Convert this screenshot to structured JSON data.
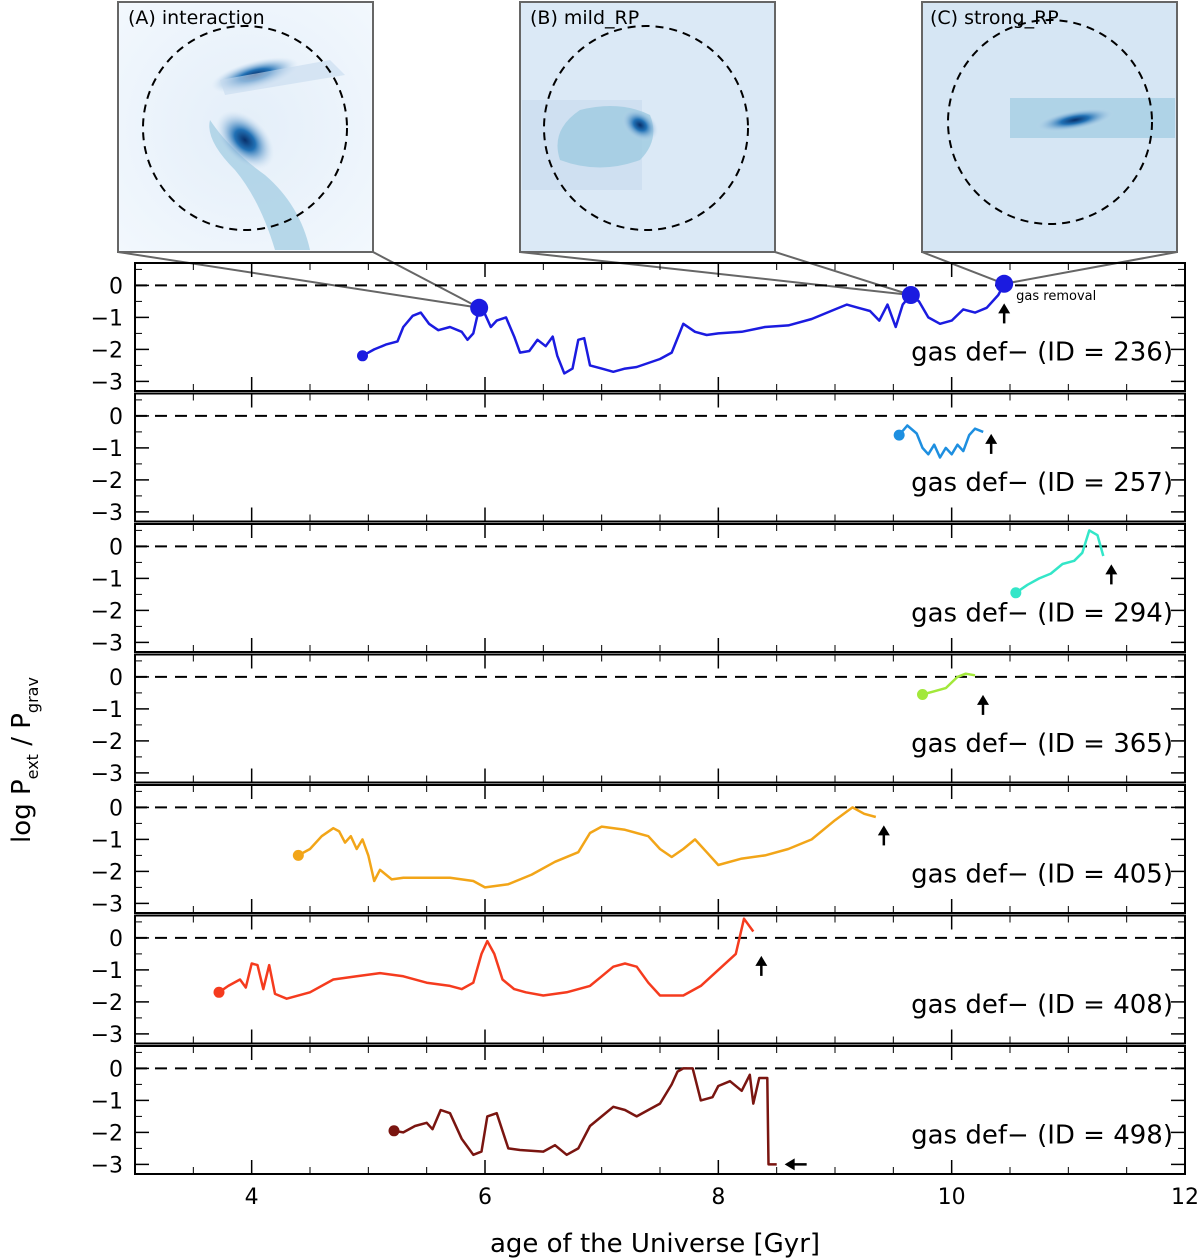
{
  "chart_data": {
    "type": "line",
    "xlabel": "age of the Universe [Gyr]",
    "ylabel": "log P_ext / P_grav",
    "xlim": [
      3,
      12
    ],
    "ylim": [
      -3.3,
      0.7
    ],
    "xticks": [
      4,
      6,
      8,
      10,
      12
    ],
    "yticks": [
      0,
      -1,
      -2,
      -3
    ],
    "reference_line_y": 0,
    "panel_label_prefix": "gas def− (ID = ",
    "panel_label_suffix": ")",
    "insets": [
      {
        "label": "(A) interaction",
        "points_to_series": "236",
        "time": 5.95
      },
      {
        "label": "(B) mild_RP",
        "points_to_series": "236",
        "time": 9.65
      },
      {
        "label": "(C) strong_RP",
        "points_to_series": "236",
        "time": 10.45
      }
    ],
    "annotation": {
      "text": "gas removal",
      "series": "236",
      "x": 10.45
    },
    "series": [
      {
        "id": "236",
        "color": "#1b1be0",
        "start": [
          4.95,
          -2.2
        ],
        "points": [
          [
            4.95,
            -2.2
          ],
          [
            5.05,
            -2.0
          ],
          [
            5.15,
            -1.85
          ],
          [
            5.25,
            -1.75
          ],
          [
            5.3,
            -1.3
          ],
          [
            5.38,
            -0.95
          ],
          [
            5.45,
            -0.85
          ],
          [
            5.52,
            -1.2
          ],
          [
            5.6,
            -1.4
          ],
          [
            5.7,
            -1.3
          ],
          [
            5.8,
            -1.45
          ],
          [
            5.85,
            -1.7
          ],
          [
            5.9,
            -1.5
          ],
          [
            5.95,
            -0.7
          ],
          [
            6.0,
            -0.9
          ],
          [
            6.05,
            -1.3
          ],
          [
            6.1,
            -1.1
          ],
          [
            6.18,
            -1.0
          ],
          [
            6.25,
            -1.6
          ],
          [
            6.3,
            -2.1
          ],
          [
            6.38,
            -2.05
          ],
          [
            6.45,
            -1.7
          ],
          [
            6.52,
            -1.9
          ],
          [
            6.58,
            -1.6
          ],
          [
            6.62,
            -2.2
          ],
          [
            6.68,
            -2.75
          ],
          [
            6.75,
            -2.6
          ],
          [
            6.8,
            -1.7
          ],
          [
            6.85,
            -1.65
          ],
          [
            6.9,
            -2.5
          ],
          [
            7.0,
            -2.6
          ],
          [
            7.1,
            -2.7
          ],
          [
            7.2,
            -2.6
          ],
          [
            7.3,
            -2.55
          ],
          [
            7.5,
            -2.3
          ],
          [
            7.6,
            -2.1
          ],
          [
            7.7,
            -1.2
          ],
          [
            7.8,
            -1.45
          ],
          [
            7.9,
            -1.55
          ],
          [
            8.0,
            -1.5
          ],
          [
            8.2,
            -1.45
          ],
          [
            8.4,
            -1.3
          ],
          [
            8.6,
            -1.25
          ],
          [
            8.8,
            -1.05
          ],
          [
            9.0,
            -0.75
          ],
          [
            9.1,
            -0.6
          ],
          [
            9.2,
            -0.7
          ],
          [
            9.3,
            -0.8
          ],
          [
            9.38,
            -1.1
          ],
          [
            9.45,
            -0.6
          ],
          [
            9.52,
            -1.3
          ],
          [
            9.58,
            -0.6
          ],
          [
            9.65,
            -0.3
          ],
          [
            9.72,
            -0.5
          ],
          [
            9.8,
            -1.0
          ],
          [
            9.9,
            -1.2
          ],
          [
            10.0,
            -1.1
          ],
          [
            10.1,
            -0.75
          ],
          [
            10.2,
            -0.85
          ],
          [
            10.3,
            -0.7
          ],
          [
            10.4,
            -0.3
          ],
          [
            10.45,
            0.05
          ]
        ]
      },
      {
        "id": "257",
        "color": "#1e8fe0",
        "start": [
          9.55,
          -0.6
        ],
        "points": [
          [
            9.55,
            -0.6
          ],
          [
            9.62,
            -0.3
          ],
          [
            9.7,
            -0.55
          ],
          [
            9.75,
            -1.0
          ],
          [
            9.8,
            -1.2
          ],
          [
            9.85,
            -0.9
          ],
          [
            9.9,
            -1.3
          ],
          [
            9.95,
            -1.0
          ],
          [
            10.0,
            -1.2
          ],
          [
            10.05,
            -0.9
          ],
          [
            10.1,
            -1.1
          ],
          [
            10.15,
            -0.6
          ],
          [
            10.2,
            -0.4
          ],
          [
            10.27,
            -0.5
          ]
        ]
      },
      {
        "id": "294",
        "color": "#33e6c8",
        "start": [
          10.55,
          -1.45
        ],
        "points": [
          [
            10.55,
            -1.45
          ],
          [
            10.65,
            -1.2
          ],
          [
            10.75,
            -1.0
          ],
          [
            10.85,
            -0.85
          ],
          [
            10.95,
            -0.55
          ],
          [
            11.05,
            -0.45
          ],
          [
            11.12,
            -0.2
          ],
          [
            11.18,
            0.5
          ],
          [
            11.25,
            0.35
          ],
          [
            11.3,
            -0.3
          ]
        ]
      },
      {
        "id": "365",
        "color": "#a2e83a",
        "start": [
          9.75,
          -0.55
        ],
        "points": [
          [
            9.75,
            -0.55
          ],
          [
            9.85,
            -0.45
          ],
          [
            9.95,
            -0.35
          ],
          [
            10.05,
            0.0
          ],
          [
            10.12,
            0.1
          ],
          [
            10.2,
            0.05
          ]
        ]
      },
      {
        "id": "405",
        "color": "#f2a518",
        "start": [
          4.4,
          -1.5
        ],
        "points": [
          [
            4.4,
            -1.5
          ],
          [
            4.5,
            -1.3
          ],
          [
            4.6,
            -0.9
          ],
          [
            4.7,
            -0.65
          ],
          [
            4.75,
            -0.75
          ],
          [
            4.8,
            -1.1
          ],
          [
            4.85,
            -0.9
          ],
          [
            4.9,
            -1.3
          ],
          [
            4.95,
            -1.0
          ],
          [
            5.0,
            -1.5
          ],
          [
            5.05,
            -2.3
          ],
          [
            5.1,
            -1.95
          ],
          [
            5.2,
            -2.25
          ],
          [
            5.3,
            -2.2
          ],
          [
            5.5,
            -2.2
          ],
          [
            5.7,
            -2.2
          ],
          [
            5.9,
            -2.3
          ],
          [
            6.0,
            -2.5
          ],
          [
            6.2,
            -2.4
          ],
          [
            6.4,
            -2.1
          ],
          [
            6.6,
            -1.7
          ],
          [
            6.8,
            -1.4
          ],
          [
            6.9,
            -0.8
          ],
          [
            7.0,
            -0.6
          ],
          [
            7.2,
            -0.7
          ],
          [
            7.4,
            -0.9
          ],
          [
            7.5,
            -1.3
          ],
          [
            7.6,
            -1.55
          ],
          [
            7.7,
            -1.3
          ],
          [
            7.8,
            -1.0
          ],
          [
            7.9,
            -1.4
          ],
          [
            8.0,
            -1.8
          ],
          [
            8.2,
            -1.6
          ],
          [
            8.4,
            -1.5
          ],
          [
            8.6,
            -1.3
          ],
          [
            8.8,
            -1.0
          ],
          [
            9.0,
            -0.4
          ],
          [
            9.15,
            -0.0
          ],
          [
            9.25,
            -0.2
          ],
          [
            9.35,
            -0.3
          ]
        ]
      },
      {
        "id": "408",
        "color": "#f53b1e",
        "start": [
          3.72,
          -1.7
        ],
        "points": [
          [
            3.72,
            -1.7
          ],
          [
            3.8,
            -1.5
          ],
          [
            3.9,
            -1.3
          ],
          [
            3.95,
            -1.55
          ],
          [
            4.0,
            -0.8
          ],
          [
            4.05,
            -0.85
          ],
          [
            4.1,
            -1.6
          ],
          [
            4.15,
            -0.85
          ],
          [
            4.2,
            -1.75
          ],
          [
            4.3,
            -1.9
          ],
          [
            4.5,
            -1.7
          ],
          [
            4.7,
            -1.3
          ],
          [
            4.9,
            -1.2
          ],
          [
            5.1,
            -1.1
          ],
          [
            5.3,
            -1.2
          ],
          [
            5.5,
            -1.4
          ],
          [
            5.7,
            -1.5
          ],
          [
            5.8,
            -1.6
          ],
          [
            5.9,
            -1.4
          ],
          [
            5.97,
            -0.5
          ],
          [
            6.02,
            -0.1
          ],
          [
            6.08,
            -0.5
          ],
          [
            6.15,
            -1.3
          ],
          [
            6.25,
            -1.6
          ],
          [
            6.35,
            -1.7
          ],
          [
            6.5,
            -1.8
          ],
          [
            6.7,
            -1.7
          ],
          [
            6.9,
            -1.5
          ],
          [
            7.0,
            -1.2
          ],
          [
            7.1,
            -0.9
          ],
          [
            7.2,
            -0.8
          ],
          [
            7.3,
            -0.9
          ],
          [
            7.4,
            -1.4
          ],
          [
            7.5,
            -1.8
          ],
          [
            7.7,
            -1.8
          ],
          [
            7.85,
            -1.5
          ],
          [
            8.0,
            -1.0
          ],
          [
            8.15,
            -0.5
          ],
          [
            8.22,
            0.6
          ],
          [
            8.3,
            0.2
          ]
        ]
      },
      {
        "id": "498",
        "color": "#7a1510",
        "start": [
          5.22,
          -1.95
        ],
        "points": [
          [
            5.22,
            -1.95
          ],
          [
            5.3,
            -2.0
          ],
          [
            5.4,
            -1.8
          ],
          [
            5.5,
            -1.7
          ],
          [
            5.55,
            -1.9
          ],
          [
            5.62,
            -1.3
          ],
          [
            5.7,
            -1.4
          ],
          [
            5.8,
            -2.2
          ],
          [
            5.9,
            -2.7
          ],
          [
            5.97,
            -2.6
          ],
          [
            6.02,
            -1.5
          ],
          [
            6.1,
            -1.4
          ],
          [
            6.2,
            -2.5
          ],
          [
            6.3,
            -2.55
          ],
          [
            6.5,
            -2.6
          ],
          [
            6.6,
            -2.4
          ],
          [
            6.7,
            -2.7
          ],
          [
            6.8,
            -2.5
          ],
          [
            6.9,
            -1.8
          ],
          [
            7.0,
            -1.5
          ],
          [
            7.1,
            -1.2
          ],
          [
            7.2,
            -1.3
          ],
          [
            7.3,
            -1.5
          ],
          [
            7.4,
            -1.3
          ],
          [
            7.5,
            -1.1
          ],
          [
            7.6,
            -0.5
          ],
          [
            7.65,
            -0.1
          ],
          [
            7.7,
            0.0
          ],
          [
            7.78,
            0.0
          ],
          [
            7.85,
            -1.0
          ],
          [
            7.95,
            -0.9
          ],
          [
            8.0,
            -0.55
          ],
          [
            8.1,
            -0.4
          ],
          [
            8.2,
            -0.7
          ],
          [
            8.27,
            -0.2
          ],
          [
            8.3,
            -1.1
          ],
          [
            8.35,
            -0.3
          ],
          [
            8.42,
            -0.3
          ],
          [
            8.43,
            -3.0
          ],
          [
            8.5,
            -3.0
          ]
        ]
      }
    ]
  }
}
